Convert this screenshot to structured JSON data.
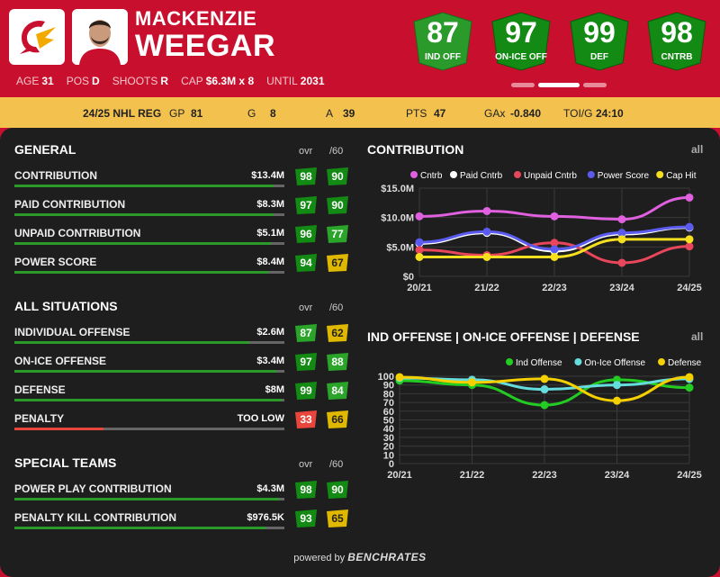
{
  "player": {
    "first_name": "MACKENZIE",
    "last_name": "WEEGAR"
  },
  "bio": [
    {
      "label": "AGE",
      "value": "31"
    },
    {
      "label": "POS",
      "value": "D"
    },
    {
      "label": "SHOOTS",
      "value": "R"
    },
    {
      "label": "CAP",
      "value": "$6.3M x 8"
    },
    {
      "label": "UNTIL",
      "value": "2031"
    }
  ],
  "ratings": [
    {
      "value": "87",
      "label": "IND OFF"
    },
    {
      "value": "97",
      "label": "ON-ICE OFF"
    },
    {
      "value": "99",
      "label": "DEF"
    },
    {
      "value": "98",
      "label": "CNTRB"
    }
  ],
  "season_bar": {
    "season": "24/25 NHL REG",
    "gp_label": "GP",
    "gp": "81",
    "g_label": "G",
    "g": "8",
    "a_label": "A",
    "a": "39",
    "pts_label": "PTS",
    "pts": "47",
    "gax_label": "GAx",
    "gax": "-0.840",
    "toi_label": "TOI/G",
    "toi": "24:10"
  },
  "col_ovr": "ovr",
  "col_p60": "/60",
  "sections": [
    {
      "title": "GENERAL",
      "rows": [
        {
          "label": "CONTRIBUTION",
          "value": "$13.4M",
          "fill": 0.96,
          "ovr": "98",
          "p60": "90",
          "fillColor": "#2a9a2a"
        },
        {
          "label": "PAID CONTRIBUTION",
          "value": "$8.3M",
          "fill": 0.96,
          "ovr": "97",
          "p60": "90",
          "fillColor": "#2a9a2a"
        },
        {
          "label": "UNPAID CONTRIBUTION",
          "value": "$5.1M",
          "fill": 0.95,
          "ovr": "96",
          "p60": "77",
          "fillColor": "#2a9a2a"
        },
        {
          "label": "POWER SCORE",
          "value": "$8.4M",
          "fill": 0.94,
          "ovr": "94",
          "p60": "67",
          "fillColor": "#2a9a2a"
        }
      ]
    },
    {
      "title": "ALL SITUATIONS",
      "rows": [
        {
          "label": "INDIVIDUAL OFFENSE",
          "value": "$2.6M",
          "fill": 0.87,
          "ovr": "87",
          "p60": "62",
          "fillColor": "#2a9a2a"
        },
        {
          "label": "ON-ICE OFFENSE",
          "value": "$3.4M",
          "fill": 0.97,
          "ovr": "97",
          "p60": "88",
          "fillColor": "#2a9a2a"
        },
        {
          "label": "DEFENSE",
          "value": "$8M",
          "fill": 0.99,
          "ovr": "99",
          "p60": "84",
          "fillColor": "#2a9a2a"
        },
        {
          "label": "PENALTY",
          "value": "TOO LOW",
          "fill": 0.33,
          "ovr": "33",
          "p60": "66",
          "fillColor": "#e8463c"
        }
      ]
    },
    {
      "title": "SPECIAL TEAMS",
      "rows": [
        {
          "label": "POWER PLAY CONTRIBUTION",
          "value": "$4.3M",
          "fill": 0.98,
          "ovr": "98",
          "p60": "90",
          "fillColor": "#2a9a2a"
        },
        {
          "label": "PENALTY KILL CONTRIBUTION",
          "value": "$976.5K",
          "fill": 0.93,
          "ovr": "93",
          "p60": "65",
          "fillColor": "#2a9a2a"
        }
      ]
    }
  ],
  "all_label": "all",
  "footer": {
    "powered": "powered by",
    "brand": "BENCHRATES"
  },
  "colors": {
    "green": "#1f8f1f",
    "bright_green": "#2aa52a",
    "yellow": "#e8c200",
    "red": "#e8463c"
  },
  "chart_data": [
    {
      "type": "line",
      "title": "CONTRIBUTION",
      "categories": [
        "20/21",
        "21/22",
        "22/23",
        "23/24",
        "24/25"
      ],
      "yticks": [
        "$0",
        "$5.0M",
        "$10.0M",
        "$15.0M"
      ],
      "ylim": [
        0,
        15
      ],
      "series": [
        {
          "name": "Cntrb",
          "color": "#e060e0",
          "values": [
            10.2,
            11.1,
            10.2,
            9.7,
            13.4
          ]
        },
        {
          "name": "Paid Cntrb",
          "color": "#ffffff",
          "values": [
            5.6,
            7.4,
            4.3,
            7.2,
            8.3
          ]
        },
        {
          "name": "Unpaid Cntrb",
          "color": "#e8465a",
          "values": [
            4.5,
            3.6,
            5.7,
            2.3,
            5.1
          ]
        },
        {
          "name": "Power Score",
          "color": "#5b5bf0",
          "values": [
            5.8,
            7.6,
            4.6,
            7.4,
            8.4
          ]
        },
        {
          "name": "Cap Hit",
          "color": "#f5e020",
          "values": [
            3.3,
            3.3,
            3.3,
            6.3,
            6.3
          ]
        }
      ]
    },
    {
      "type": "line",
      "title": "IND OFFENSE | ON-ICE OFFENSE | DEFENSE",
      "categories": [
        "20/21",
        "21/22",
        "22/23",
        "23/24",
        "24/25"
      ],
      "yticks": [
        "0",
        "10",
        "20",
        "30",
        "40",
        "50",
        "60",
        "70",
        "80",
        "90",
        "100"
      ],
      "ylim": [
        0,
        100
      ],
      "series": [
        {
          "name": "Ind Offense",
          "color": "#22cc22",
          "values": [
            95,
            90,
            67,
            96,
            87
          ]
        },
        {
          "name": "On-Ice Offense",
          "color": "#66dddd",
          "values": [
            98,
            96,
            85,
            90,
            97
          ]
        },
        {
          "name": "Defense",
          "color": "#f5d000",
          "values": [
            99,
            93,
            97,
            72,
            99
          ]
        }
      ]
    }
  ]
}
